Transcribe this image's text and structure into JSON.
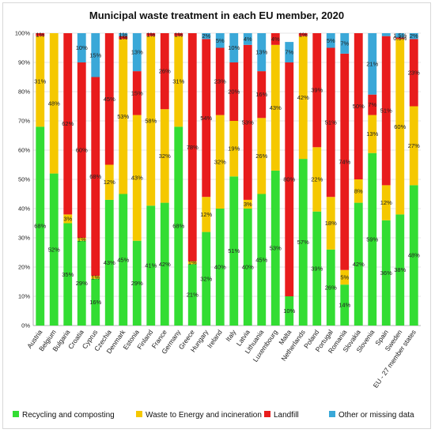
{
  "chart_data": {
    "type": "bar",
    "stacked": true,
    "title": "Municipal waste treatment in each EU member, 2020",
    "xlabel": "",
    "ylabel": "",
    "ylim": [
      0,
      100
    ],
    "y_ticks": [
      "0%",
      "10%",
      "20%",
      "30%",
      "40%",
      "50%",
      "60%",
      "70%",
      "80%",
      "90%",
      "100%"
    ],
    "grid": true,
    "legend_position": "bottom",
    "categories": [
      "Austria",
      "Belgium",
      "Bulgaria",
      "Croatia",
      "Cyprus",
      "Czechia",
      "Denmark",
      "Estonia",
      "Finland",
      "France",
      "Germany",
      "Greece",
      "Hungary",
      "Ireland",
      "Italy",
      "Latvia",
      "Lithuania",
      "Luxembourg",
      "Malta",
      "Netherlands",
      "Poland",
      "Portugal",
      "Romania",
      "Slovakia",
      "Slovenia",
      "Spain",
      "Sweden",
      "EU - 27 member states"
    ],
    "series": [
      {
        "name": "Recycling and composting",
        "color": "#33dd33",
        "values": [
          68,
          52,
          35,
          29,
          16,
          43,
          45,
          29,
          41,
          42,
          68,
          21,
          32,
          40,
          51,
          40,
          45,
          53,
          10,
          57,
          39,
          26,
          14,
          42,
          59,
          36,
          38,
          48
        ],
        "labels": [
          "68%",
          "52%",
          "35%",
          "29%",
          "16%",
          "43%",
          "45%",
          "29%",
          "41%",
          "42%",
          "68%",
          "21%",
          "32%",
          "40%",
          "51%",
          "40%",
          "45%",
          "53%",
          "10%",
          "57%",
          "39%",
          "26%",
          "14%",
          "42%",
          "59%",
          "36%",
          "38%",
          "48%"
        ]
      },
      {
        "name": "Waste to Energy and incineration",
        "color": "#f5c800",
        "values": [
          31,
          48,
          3,
          1,
          1,
          12,
          53,
          43,
          58,
          32,
          31,
          1,
          12,
          32,
          19,
          3,
          26,
          43,
          0,
          42,
          22,
          18,
          5,
          8,
          13,
          12,
          60,
          27
        ],
        "labels": [
          "31%",
          "48%",
          "3%",
          "1%",
          "1%",
          "12%",
          "53%",
          "43%",
          "58%",
          "32%",
          "31%",
          "1%",
          "12%",
          "32%",
          "19%",
          "3%",
          "26%",
          "43%",
          "",
          "42%",
          "22%",
          "18%",
          "5%",
          "8%",
          "13%",
          "12%",
          "60%",
          "27%"
        ]
      },
      {
        "name": "Landfill",
        "color": "#e81c1c",
        "values": [
          1,
          0,
          62,
          60,
          68,
          45,
          1,
          15,
          1,
          26,
          1,
          78,
          54,
          23,
          20,
          53,
          16,
          4,
          80,
          1,
          39,
          51,
          74,
          50,
          7,
          51,
          0.5,
          23
        ],
        "labels": [
          "1%",
          "",
          "62%",
          "60%",
          "68%",
          "45%",
          "1%",
          "15%",
          "1%",
          "26%",
          "1%",
          "78%",
          "54%",
          "23%",
          "20%",
          "53%",
          "16%",
          "4%",
          "80%",
          "1%",
          "39%",
          "51%",
          "74%",
          "50%",
          "7%",
          "51%",
          "0.5%",
          "23%"
        ]
      },
      {
        "name": "Other or missing data",
        "color": "#3aa8d8",
        "values": [
          0,
          0,
          0,
          10,
          15,
          0,
          1,
          13,
          0,
          0,
          0,
          0,
          2,
          5,
          10,
          4,
          13,
          0,
          7,
          0,
          0,
          5,
          7,
          0,
          21,
          1,
          1.5,
          2
        ],
        "labels": [
          "",
          "",
          "",
          "10%",
          "15%",
          "",
          "1%",
          "13%",
          "",
          "",
          "",
          "",
          "2%",
          "5%",
          "10%",
          "4%",
          "13%",
          "",
          "7%",
          "",
          "",
          "5%",
          "7%",
          "",
          "21%",
          "",
          "1.5%",
          "2%"
        ]
      }
    ]
  }
}
